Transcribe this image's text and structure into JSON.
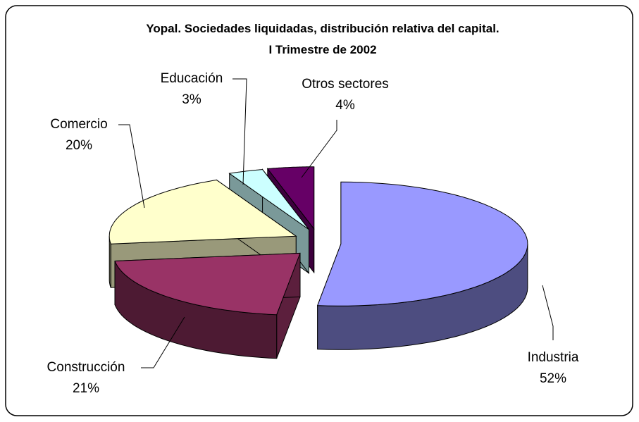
{
  "chart_data": {
    "type": "pie3d",
    "title": "Yopal.  Sociedades liquidadas, distribución relativa del capital.",
    "subtitle": "I Trimestre de 2002",
    "categories": [
      "Industria",
      "Construcción",
      "Comercio",
      "Educación",
      "Otros sectores"
    ],
    "values": [
      52,
      21,
      20,
      3,
      4
    ],
    "value_labels": [
      "52%",
      "21%",
      "20%",
      "3%",
      "4%"
    ],
    "colors": [
      "#9999ff",
      "#993366",
      "#ffffcc",
      "#ccffff",
      "#660066"
    ]
  }
}
